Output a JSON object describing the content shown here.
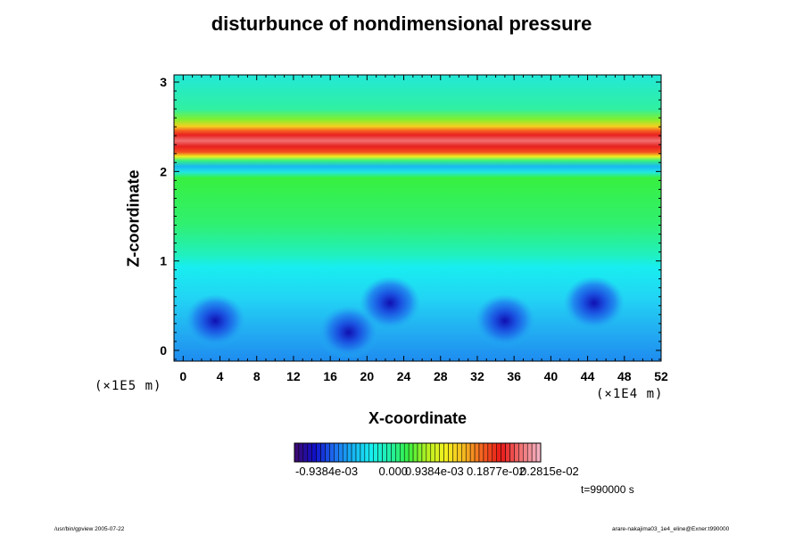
{
  "chart_data": {
    "type": "heatmap",
    "title": "disturbunce of nondimensional pressure",
    "xlabel": "X-coordinate",
    "ylabel": "Z-coordinate",
    "x_unit": "(×1E4 m)",
    "z_unit": "(×1E5 m)",
    "xlim": [
      -1,
      52
    ],
    "ylim": [
      -0.12,
      3.08
    ],
    "x_ticks": [
      0,
      4,
      8,
      12,
      16,
      20,
      24,
      28,
      32,
      36,
      40,
      44,
      48,
      52
    ],
    "y_ticks": [
      0,
      1,
      2,
      3
    ],
    "colorbar": {
      "ticks": [
        "-0.9384e-03",
        "0.000",
        "0.9384e-03",
        "0.1877e-02",
        "0.2815e-02"
      ],
      "colors": [
        "#3a0a78",
        "#1010c8",
        "#1e6cf0",
        "#16b4f4",
        "#18eef0",
        "#20f0a8",
        "#38f040",
        "#b4f020",
        "#f4f020",
        "#f4b820",
        "#f46020",
        "#e81818",
        "#f07070",
        "#f4b0c0"
      ]
    },
    "field_summary": [
      {
        "z_range": [
          -0.12,
          1.0
        ],
        "level": "-0.3e-03",
        "description": "cool blue region with low-pressure blobs"
      },
      {
        "z_range": [
          1.0,
          2.05
        ],
        "level": "0.9e-03",
        "description": "green band"
      },
      {
        "z_range": [
          2.05,
          2.15
        ],
        "level": "-0.2e-03",
        "description": "thin cyan strip"
      },
      {
        "z_range": [
          2.2,
          2.45
        ],
        "level": "0.28e-02",
        "description": "red maximum band"
      },
      {
        "z_range": [
          2.45,
          3.08
        ],
        "level": "0.5e-03",
        "description": "green-cyan upper region"
      }
    ],
    "minima": [
      {
        "x": 3.5,
        "z": 0.33
      },
      {
        "x": 18,
        "z": 0.2
      },
      {
        "x": 22.5,
        "z": 0.53
      },
      {
        "x": 35,
        "z": 0.33
      },
      {
        "x": 44.7,
        "z": 0.53
      }
    ]
  },
  "annotations": {
    "time": "t=990000 s",
    "footer_left": "/usr/bin/gpview 2005-07-22",
    "footer_right": "arare-nakajima03_1e4_eline@Exner:t990000"
  }
}
